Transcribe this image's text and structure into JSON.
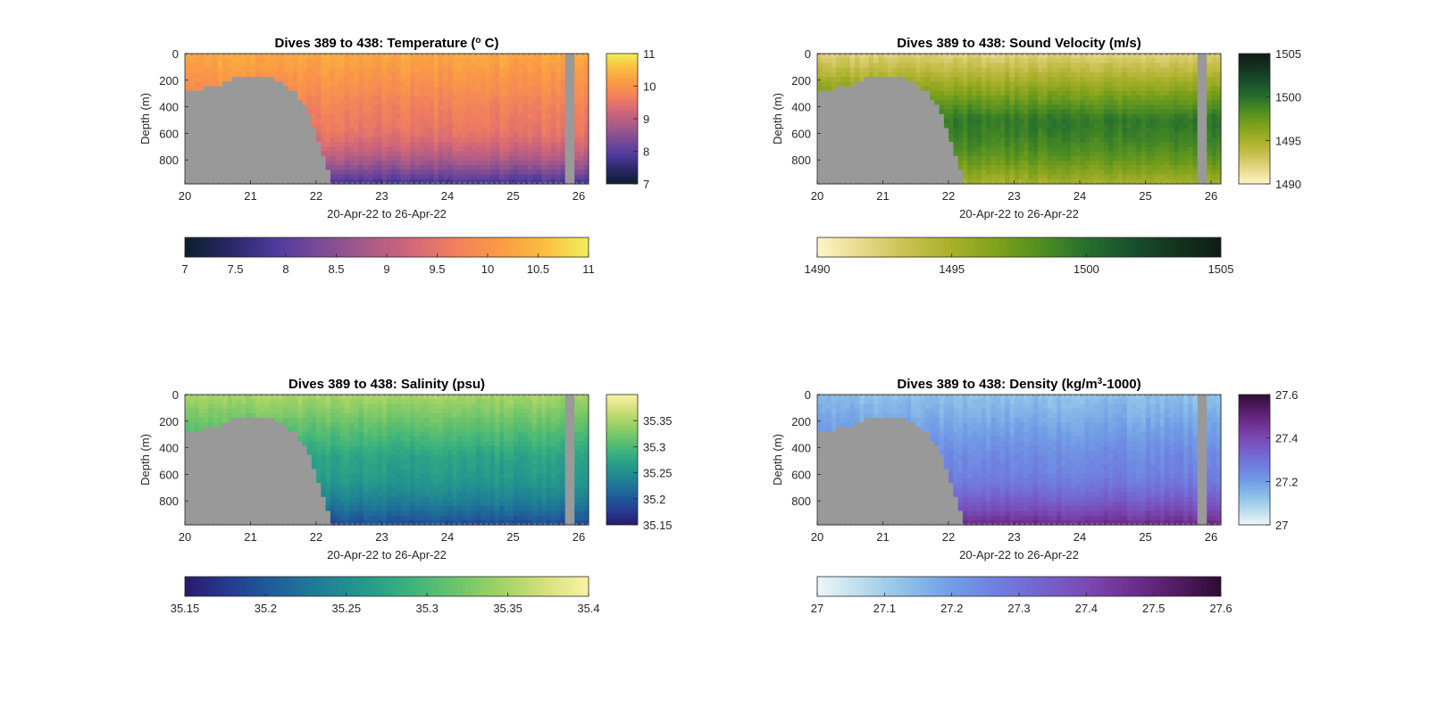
{
  "chart_data": [
    {
      "type": "heatmap",
      "variable": "temperature",
      "title_prefix": "Dives 389 to 438: Temperature (",
      "title_sup": "o",
      "title_suffix": " C)",
      "xlabel": "20-Apr-22 to 26-Apr-22",
      "ylabel": "Depth (m)",
      "xlim": [
        20,
        26.15
      ],
      "ylim": [
        0,
        980
      ],
      "xticks": [
        "20",
        "21",
        "22",
        "23",
        "24",
        "25",
        "26"
      ],
      "yticks": [
        "0",
        "200",
        "400",
        "600",
        "800"
      ],
      "colorbar_vertical": {
        "range": [
          7,
          11
        ],
        "ticks": [
          "11",
          "10",
          "9",
          "8",
          "7"
        ]
      },
      "colorbar_horizontal": {
        "range": [
          7,
          11
        ],
        "ticks": [
          "7",
          "7.5",
          "8",
          "8.5",
          "9",
          "9.5",
          "10",
          "10.5",
          "11"
        ]
      },
      "colormap": [
        "#0b1f2e",
        "#2a2766",
        "#4d3a9c",
        "#7a4a96",
        "#a65a88",
        "#d0667a",
        "#f27f5e",
        "#fa9a45",
        "#fbbd3f",
        "#f0ee5a"
      ],
      "surface_value": 10.3,
      "deep_value": 9.6,
      "bottom_value": 7.8
    },
    {
      "type": "heatmap",
      "variable": "sound_velocity",
      "title_prefix": "Dives 389 to 438: Sound Velocity (m/s)",
      "title_sup": "",
      "title_suffix": "",
      "xlabel": "20-Apr-22 to 26-Apr-22",
      "ylabel": "Depth (m)",
      "xlim": [
        20,
        26.15
      ],
      "ylim": [
        0,
        980
      ],
      "xticks": [
        "20",
        "21",
        "22",
        "23",
        "24",
        "25",
        "26"
      ],
      "yticks": [
        "0",
        "200",
        "400",
        "600",
        "800"
      ],
      "colorbar_vertical": {
        "range": [
          1490,
          1505
        ],
        "ticks": [
          "1505",
          "1500",
          "1495",
          "1490"
        ]
      },
      "colorbar_horizontal": {
        "range": [
          1490,
          1505
        ],
        "ticks": [
          "1490",
          "1495",
          "1500",
          "1505"
        ]
      },
      "colormap": [
        "#fdf6c8",
        "#e8d88a",
        "#c9c050",
        "#a8b02a",
        "#7fa11b",
        "#4f8e22",
        "#266f2e",
        "#19502c",
        "#13341f",
        "#0f1c14"
      ],
      "surface_value": 1492,
      "deep_value": 1499.5,
      "bottom_value": 1495
    },
    {
      "type": "heatmap",
      "variable": "salinity",
      "title_prefix": "Dives 389 to 438: Salinity (psu)",
      "title_sup": "",
      "title_suffix": "",
      "xlabel": "20-Apr-22 to 26-Apr-22",
      "ylabel": "Depth (m)",
      "xlim": [
        20,
        26.15
      ],
      "ylim": [
        0,
        980
      ],
      "xticks": [
        "20",
        "21",
        "22",
        "23",
        "24",
        "25",
        "26"
      ],
      "yticks": [
        "0",
        "200",
        "400",
        "600",
        "800"
      ],
      "colorbar_vertical": {
        "range": [
          35.15,
          35.4
        ],
        "ticks": [
          "35.35",
          "35.3",
          "35.25",
          "35.2",
          "35.15"
        ]
      },
      "colorbar_horizontal": {
        "range": [
          35.15,
          35.4
        ],
        "ticks": [
          "35.15",
          "35.2",
          "35.25",
          "35.3",
          "35.35",
          "35.4"
        ]
      },
      "colormap": [
        "#2a1a6b",
        "#243c92",
        "#1f5f9a",
        "#1f7e96",
        "#25998c",
        "#3cb27d",
        "#6ac46b",
        "#9fd265",
        "#d3e07a",
        "#faf3a6"
      ],
      "surface_value": 35.35,
      "deep_value": 35.27,
      "bottom_value": 35.19
    },
    {
      "type": "heatmap",
      "variable": "density",
      "title_prefix": "Dives 389 to 438: Density (kg/m",
      "title_sup": "3",
      "title_suffix": "-1000)",
      "xlabel": "20-Apr-22 to 26-Apr-22",
      "ylabel": "Depth (m)",
      "xlim": [
        20,
        26.15
      ],
      "ylim": [
        0,
        980
      ],
      "xticks": [
        "20",
        "21",
        "22",
        "23",
        "24",
        "25",
        "26"
      ],
      "yticks": [
        "0",
        "200",
        "400",
        "600",
        "800"
      ],
      "colorbar_vertical": {
        "range": [
          27,
          27.6
        ],
        "ticks": [
          "27.6",
          "27.4",
          "27.2",
          "27"
        ]
      },
      "colorbar_horizontal": {
        "range": [
          27,
          27.6
        ],
        "ticks": [
          "27",
          "27.1",
          "27.2",
          "27.3",
          "27.4",
          "27.5",
          "27.6"
        ]
      },
      "colormap": [
        "#eef6f8",
        "#b9dced",
        "#8cbfe8",
        "#719de6",
        "#6f7fe0",
        "#7563cf",
        "#7a49b4",
        "#6f2f8f",
        "#531c66",
        "#2c0c32"
      ],
      "surface_value": 27.13,
      "deep_value": 27.25,
      "bottom_value": 27.48
    }
  ],
  "gap_color": "#999999"
}
